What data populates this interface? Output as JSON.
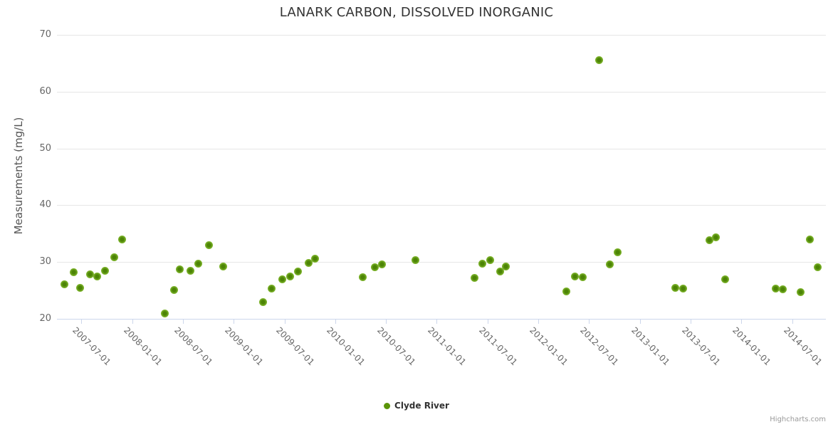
{
  "credits": "Highcharts.com",
  "colors": {
    "series_green": "#5a9408",
    "marker_center": "#4c8405",
    "marker_edge": "#92c83c",
    "gridline": "#e6e6e6",
    "axis_line": "#ccd6eb",
    "label_text": "#666666",
    "title_text": "#333333"
  },
  "legend": {
    "position": "bottom-center",
    "items": [
      {
        "label": "Clyde River",
        "marker_color": "#5a9408"
      }
    ]
  },
  "chart_data": {
    "type": "scatter",
    "title": "LANARK CARBON, DISSOLVED INORGANIC",
    "xlabel": "",
    "ylabel": "Measurements (mg/L)",
    "ylim": [
      20,
      70
    ],
    "yticks": [
      20,
      30,
      40,
      50,
      60,
      70
    ],
    "xticks": [
      "2007-07-01",
      "2008-01-01",
      "2008-07-01",
      "2009-01-01",
      "2009-07-01",
      "2010-01-01",
      "2010-07-01",
      "2011-01-01",
      "2011-07-01",
      "2012-01-01",
      "2012-07-01",
      "2013-01-01",
      "2013-07-01",
      "2014-01-01",
      "2014-07-01"
    ],
    "grid": "horizontal",
    "legend_position": "bottom-center",
    "series": [
      {
        "name": "Clyde River",
        "color": "#5a9408",
        "marker": {
          "center": "#4c8405",
          "edge": "#92c83c"
        },
        "points": [
          {
            "date": "2007-05-02",
            "value": 26.1
          },
          {
            "date": "2007-06-05",
            "value": 28.2
          },
          {
            "date": "2007-06-26",
            "value": 25.5
          },
          {
            "date": "2007-07-31",
            "value": 27.8
          },
          {
            "date": "2007-08-28",
            "value": 27.5
          },
          {
            "date": "2007-09-25",
            "value": 28.5
          },
          {
            "date": "2007-10-29",
            "value": 30.8
          },
          {
            "date": "2007-11-26",
            "value": 34.0
          },
          {
            "date": "2008-04-27",
            "value": 20.9
          },
          {
            "date": "2008-05-30",
            "value": 25.1
          },
          {
            "date": "2008-06-21",
            "value": 28.7
          },
          {
            "date": "2008-07-27",
            "value": 28.4
          },
          {
            "date": "2008-08-25",
            "value": 29.7
          },
          {
            "date": "2008-10-04",
            "value": 33.0
          },
          {
            "date": "2008-11-23",
            "value": 29.2
          },
          {
            "date": "2009-04-16",
            "value": 22.9
          },
          {
            "date": "2009-05-17",
            "value": 25.3
          },
          {
            "date": "2009-06-24",
            "value": 26.9
          },
          {
            "date": "2009-07-22",
            "value": 27.4
          },
          {
            "date": "2009-08-19",
            "value": 28.3
          },
          {
            "date": "2009-09-27",
            "value": 29.8
          },
          {
            "date": "2009-10-21",
            "value": 30.6
          },
          {
            "date": "2010-04-10",
            "value": 27.3
          },
          {
            "date": "2010-05-22",
            "value": 29.1
          },
          {
            "date": "2010-06-18",
            "value": 29.6
          },
          {
            "date": "2010-10-15",
            "value": 30.4
          },
          {
            "date": "2011-05-16",
            "value": 27.2
          },
          {
            "date": "2011-06-13",
            "value": 29.7
          },
          {
            "date": "2011-07-11",
            "value": 30.3
          },
          {
            "date": "2011-08-17",
            "value": 28.3
          },
          {
            "date": "2011-09-05",
            "value": 29.2
          },
          {
            "date": "2012-04-11",
            "value": 24.8
          },
          {
            "date": "2012-05-10",
            "value": 27.5
          },
          {
            "date": "2012-06-08",
            "value": 27.3
          },
          {
            "date": "2012-08-08",
            "value": 65.5
          },
          {
            "date": "2012-09-16",
            "value": 29.6
          },
          {
            "date": "2012-10-12",
            "value": 31.7
          },
          {
            "date": "2013-05-08",
            "value": 25.4
          },
          {
            "date": "2013-06-05",
            "value": 25.3
          },
          {
            "date": "2013-09-07",
            "value": 33.8
          },
          {
            "date": "2013-10-02",
            "value": 34.4
          },
          {
            "date": "2013-11-05",
            "value": 27.0
          },
          {
            "date": "2014-05-02",
            "value": 25.3
          },
          {
            "date": "2014-05-29",
            "value": 25.2
          },
          {
            "date": "2014-08-02",
            "value": 24.7
          },
          {
            "date": "2014-09-05",
            "value": 34.0
          },
          {
            "date": "2014-10-03",
            "value": 29.1
          }
        ]
      }
    ]
  }
}
